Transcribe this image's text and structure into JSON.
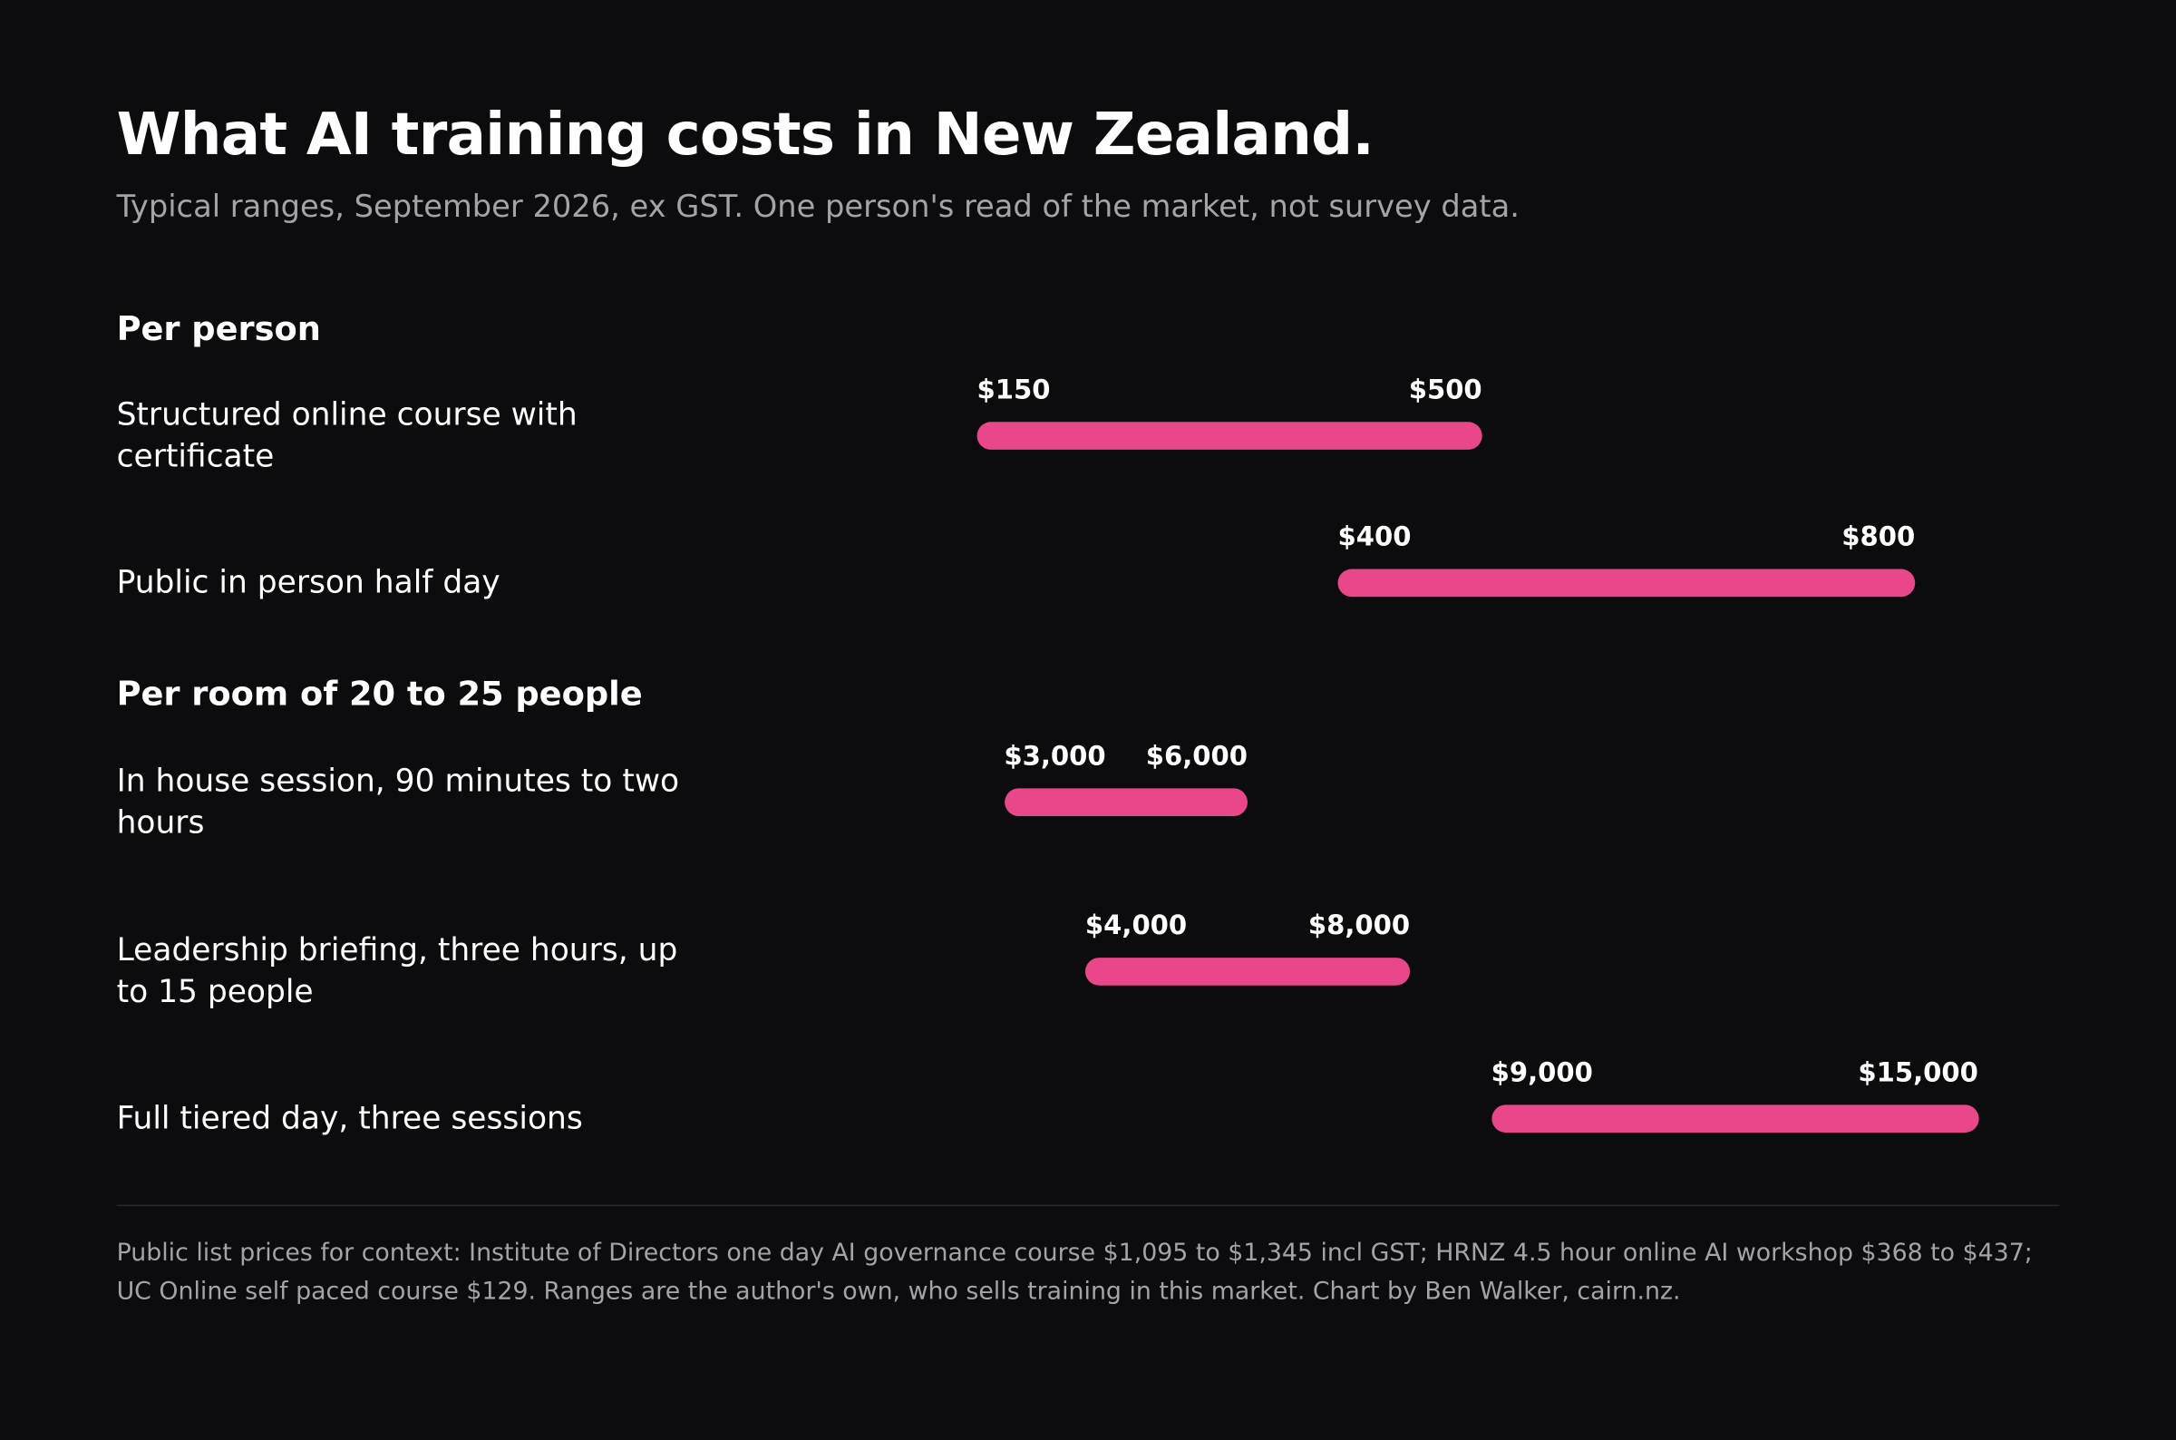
{
  "header": {
    "title": "What AI training costs in New Zealand.",
    "subtitle": "Typical ranges, September 2026, ex GST. One person's read of the market, not survey data."
  },
  "chart_data": [
    {
      "type": "range",
      "title": "Per person",
      "color": "#e8488a",
      "xlim": [
        0,
        900
      ],
      "categories": [
        "Structured online course with certificate",
        "Public in person half day"
      ],
      "values": [
        [
          150,
          500
        ],
        [
          400,
          800
        ]
      ],
      "value_labels": [
        [
          "$150",
          "$500"
        ],
        [
          "$400",
          "$800"
        ]
      ]
    },
    {
      "type": "range",
      "title": "Per room of 20 to 25 people",
      "color": "#e8488a",
      "xlim": [
        0,
        16000
      ],
      "categories": [
        "In house session, 90 minutes to two hours",
        "Leadership briefing, three hours, up to 15 people",
        "Full tiered day, three sessions"
      ],
      "values": [
        [
          3000,
          6000
        ],
        [
          4000,
          8000
        ],
        [
          9000,
          15000
        ]
      ],
      "value_labels": [
        [
          "$3,000",
          "$6,000"
        ],
        [
          "$4,000",
          "$8,000"
        ],
        [
          "$9,000",
          "$15,000"
        ]
      ]
    }
  ],
  "footnote": "Public list prices for context: Institute of Directors one day AI governance course $1,095 to $1,345 incl GST; HRNZ 4.5 hour online AI workshop $368 to $437; UC Online self paced course $129. Ranges are the author's own, who sells training in this market. Chart by Ben Walker, cairn.nz."
}
